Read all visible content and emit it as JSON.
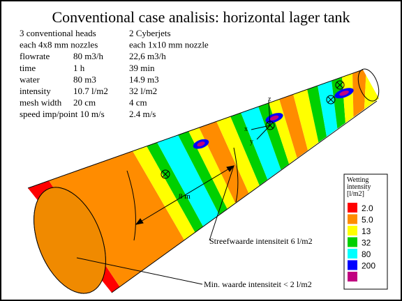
{
  "title": "Conventional case analisis: horizontal lager tank",
  "table": {
    "rows": [
      [
        "3 conventional heads",
        "2 Cyberjets"
      ],
      [
        "each 4x8 mm nozzles",
        "each 1x10 mm nozzle"
      ],
      [
        "flowrate",
        "80 m3/h",
        "22,6 m3/h"
      ],
      [
        "time",
        "1 h",
        "39 min"
      ],
      [
        "water",
        "80 m3",
        "14.9 m3"
      ],
      [
        "intensity",
        "10.7 l/m2",
        "32 l/m2"
      ],
      [
        "mesh width",
        "20 cm",
        "4 cm"
      ],
      [
        "speed imp/point 10 m/s",
        "2.4 m/s"
      ]
    ]
  },
  "annotations": {
    "length": "8 m",
    "target": "Streefwaarde intensiteit 6 l/m2",
    "minimum": "Min. waarde intensiteit < 2 l/m2"
  },
  "axes": {
    "x": "x",
    "y": "y",
    "z": "z"
  },
  "legend": {
    "title": [
      "Wetting",
      "intensity",
      "[l/m2]"
    ],
    "items": [
      {
        "label": "2.0",
        "color": "#ff0000"
      },
      {
        "label": "5.0",
        "color": "#ff8c00"
      },
      {
        "label": "13",
        "color": "#ffff00"
      },
      {
        "label": "32",
        "color": "#00d000"
      },
      {
        "label": "80",
        "color": "#00ffff"
      },
      {
        "label": "200",
        "color": "#0000ff"
      },
      {
        "label": "",
        "color": "#c00080"
      }
    ]
  }
}
